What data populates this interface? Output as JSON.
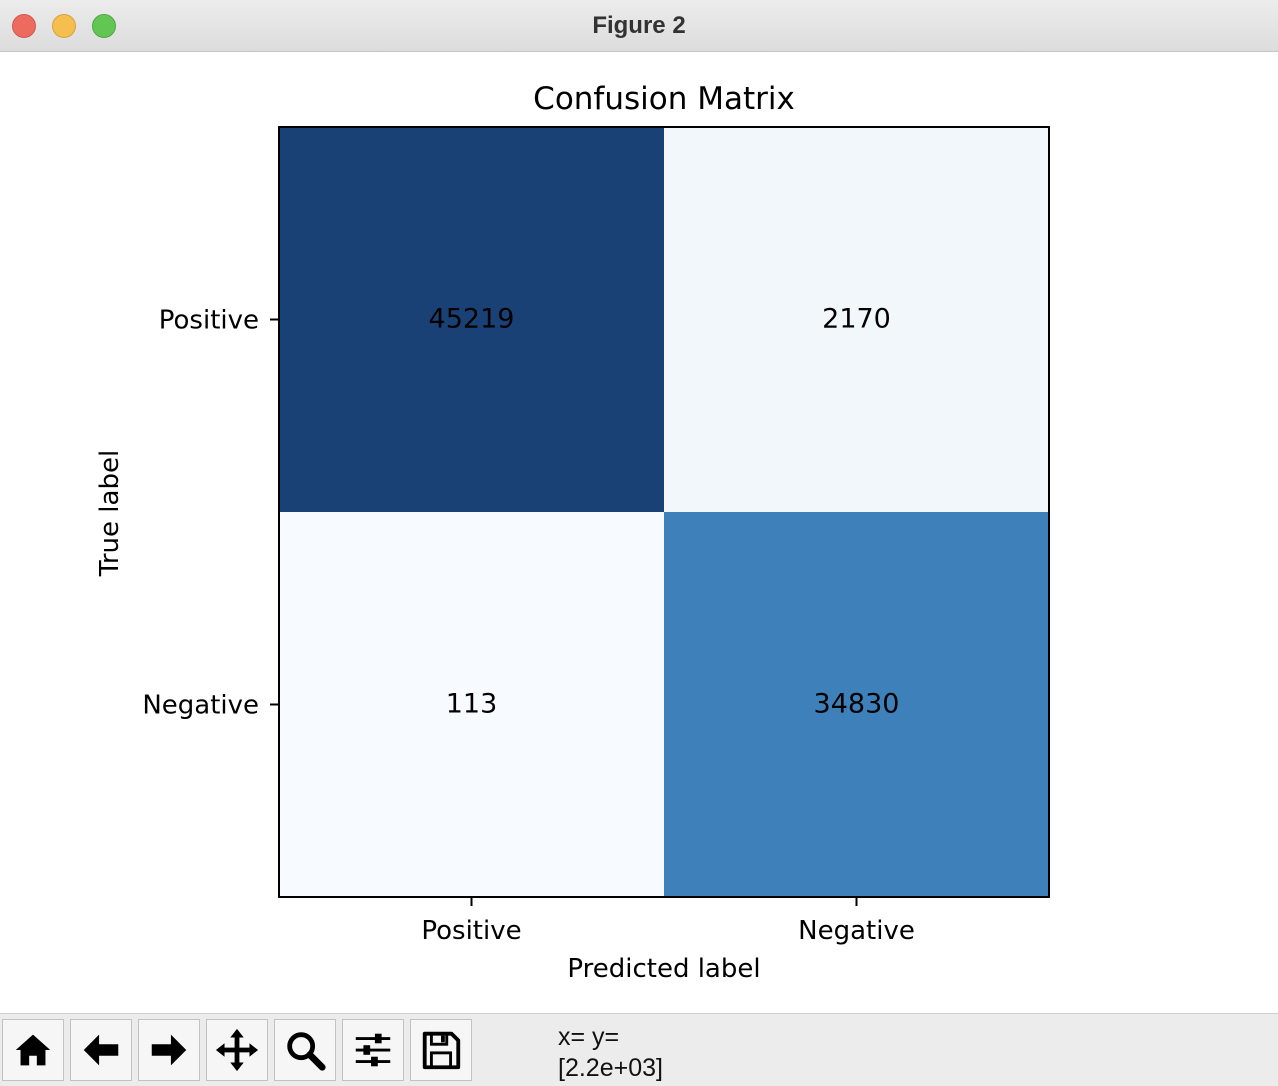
{
  "window": {
    "title": "Figure 2"
  },
  "toolbar": {
    "buttons": [
      {
        "name": "home-button",
        "icon": "home-icon"
      },
      {
        "name": "back-button",
        "icon": "arrow-left-icon"
      },
      {
        "name": "forward-button",
        "icon": "arrow-right-icon"
      },
      {
        "name": "pan-button",
        "icon": "move-icon"
      },
      {
        "name": "zoom-button",
        "icon": "magnifier-icon"
      },
      {
        "name": "configure-subplots-button",
        "icon": "sliders-icon"
      },
      {
        "name": "save-button",
        "icon": "floppy-disk-icon"
      }
    ],
    "coords_line1": "x= y=",
    "coords_line2": "[2.2e+03]"
  },
  "chart_data": {
    "type": "heatmap",
    "title": "Confusion Matrix",
    "xlabel": "Predicted label",
    "ylabel": "True label",
    "x_categories": [
      "Positive",
      "Negative"
    ],
    "y_categories": [
      "Positive",
      "Negative"
    ],
    "values": [
      [
        45219,
        2170
      ],
      [
        113,
        34830
      ]
    ],
    "colormap": "Blues",
    "cell_colors": [
      [
        "#1a4176",
        "#f2f7fc"
      ],
      [
        "#f7fbff",
        "#3e80ba"
      ]
    ],
    "text_color": "#000000",
    "grid": false,
    "colorbar": false
  }
}
